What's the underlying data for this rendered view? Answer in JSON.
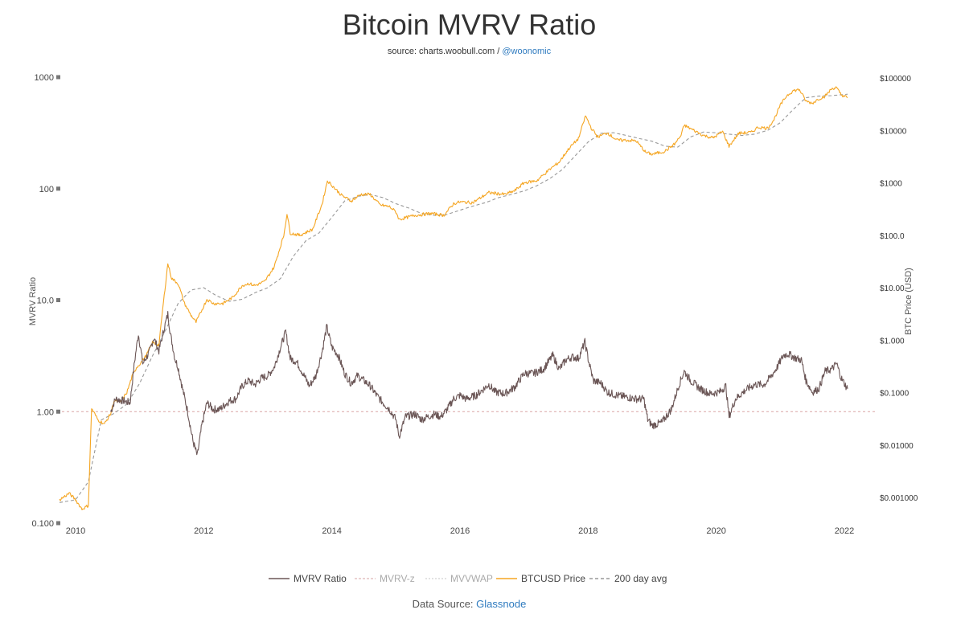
{
  "header": {
    "title": "Bitcoin MVRV Ratio",
    "source_prefix": "source: charts.woobull.com /",
    "source_handle": "@woonomic"
  },
  "footer": {
    "prefix": "Data Source:",
    "link": "Glassnode"
  },
  "colors": {
    "mvrv": "#6b5656",
    "price": "#f5a623",
    "avg": "#999999",
    "reference": "#d9a6a6",
    "mvrvz": "#e3c2c2",
    "mvvwap": "#d9d9d9"
  },
  "chart_data": {
    "type": "line",
    "title": "Bitcoin MVRV Ratio",
    "x_ticks": [
      "2010",
      "2012",
      "2014",
      "2016",
      "2018",
      "2020",
      "2022"
    ],
    "x_range": [
      2009.75,
      2022.4
    ],
    "left_axis": {
      "label": "MVRV Ratio",
      "scale": "log",
      "range": [
        0.1,
        1000
      ],
      "ticks": [
        {
          "value": 1000,
          "label": "1000"
        },
        {
          "value": 100,
          "label": "100"
        },
        {
          "value": 10,
          "label": "10.0"
        },
        {
          "value": 1,
          "label": "1.00"
        },
        {
          "value": 0.1,
          "label": "0.100"
        }
      ]
    },
    "right_axis": {
      "label": "BTC Price (USD)",
      "scale": "log",
      "range": [
        0.0004,
        200000
      ],
      "ticks": [
        {
          "value": 100000,
          "label": "$100000"
        },
        {
          "value": 10000,
          "label": "$10000"
        },
        {
          "value": 1000,
          "label": "$1000"
        },
        {
          "value": 100,
          "label": "$100.0"
        },
        {
          "value": 10,
          "label": "$10.00"
        },
        {
          "value": 1,
          "label": "$1.000"
        },
        {
          "value": 0.1,
          "label": "$0.1000"
        },
        {
          "value": 0.01,
          "label": "$0.01000"
        },
        {
          "value": 0.001,
          "label": "$0.001000"
        }
      ]
    },
    "reference_line": {
      "value": 1.0,
      "axis": "left"
    },
    "legend": [
      "MVRV Ratio",
      "MVRV-z",
      "MVVWAP",
      "BTCUSD Price",
      "200 day avg"
    ],
    "series": [
      {
        "name": "MVRV Ratio",
        "axis": "left",
        "points": [
          [
            2010.55,
            1.0
          ],
          [
            2010.62,
            1.3
          ],
          [
            2010.75,
            1.25
          ],
          [
            2010.85,
            1.2
          ],
          [
            2010.92,
            2.8
          ],
          [
            2010.98,
            5.0
          ],
          [
            2011.05,
            2.7
          ],
          [
            2011.15,
            3.4
          ],
          [
            2011.22,
            4.6
          ],
          [
            2011.3,
            3.5
          ],
          [
            2011.38,
            5.5
          ],
          [
            2011.44,
            7.5
          ],
          [
            2011.48,
            5.0
          ],
          [
            2011.55,
            3.0
          ],
          [
            2011.6,
            2.5
          ],
          [
            2011.67,
            1.6
          ],
          [
            2011.75,
            1.0
          ],
          [
            2011.83,
            0.55
          ],
          [
            2011.9,
            0.4
          ],
          [
            2011.97,
            0.75
          ],
          [
            2012.05,
            1.2
          ],
          [
            2012.15,
            1.05
          ],
          [
            2012.25,
            1.05
          ],
          [
            2012.4,
            1.25
          ],
          [
            2012.5,
            1.3
          ],
          [
            2012.6,
            1.7
          ],
          [
            2012.7,
            1.9
          ],
          [
            2012.8,
            1.75
          ],
          [
            2012.9,
            2.0
          ],
          [
            2013.0,
            2.1
          ],
          [
            2013.1,
            2.5
          ],
          [
            2013.2,
            3.8
          ],
          [
            2013.28,
            5.2
          ],
          [
            2013.35,
            3.0
          ],
          [
            2013.45,
            2.8
          ],
          [
            2013.55,
            2.2
          ],
          [
            2013.65,
            1.7
          ],
          [
            2013.75,
            2.1
          ],
          [
            2013.85,
            3.5
          ],
          [
            2013.92,
            5.8
          ],
          [
            2014.0,
            3.8
          ],
          [
            2014.1,
            3.2
          ],
          [
            2014.2,
            2.2
          ],
          [
            2014.3,
            1.8
          ],
          [
            2014.4,
            2.1
          ],
          [
            2014.5,
            1.9
          ],
          [
            2014.6,
            1.7
          ],
          [
            2014.7,
            1.4
          ],
          [
            2014.8,
            1.2
          ],
          [
            2014.9,
            1.05
          ],
          [
            2015.0,
            0.85
          ],
          [
            2015.05,
            0.6
          ],
          [
            2015.15,
            0.9
          ],
          [
            2015.3,
            0.95
          ],
          [
            2015.4,
            0.85
          ],
          [
            2015.5,
            0.9
          ],
          [
            2015.6,
            0.95
          ],
          [
            2015.7,
            0.9
          ],
          [
            2015.8,
            1.05
          ],
          [
            2015.9,
            1.3
          ],
          [
            2016.0,
            1.4
          ],
          [
            2016.1,
            1.3
          ],
          [
            2016.25,
            1.4
          ],
          [
            2016.45,
            1.75
          ],
          [
            2016.55,
            1.5
          ],
          [
            2016.7,
            1.45
          ],
          [
            2016.85,
            1.65
          ],
          [
            2017.0,
            2.2
          ],
          [
            2017.15,
            2.2
          ],
          [
            2017.3,
            2.4
          ],
          [
            2017.45,
            3.2
          ],
          [
            2017.55,
            2.4
          ],
          [
            2017.65,
            2.9
          ],
          [
            2017.75,
            3.1
          ],
          [
            2017.85,
            3.0
          ],
          [
            2017.95,
            4.2
          ],
          [
            2018.0,
            3.0
          ],
          [
            2018.08,
            1.9
          ],
          [
            2018.2,
            1.8
          ],
          [
            2018.3,
            1.5
          ],
          [
            2018.45,
            1.4
          ],
          [
            2018.6,
            1.35
          ],
          [
            2018.75,
            1.3
          ],
          [
            2018.87,
            1.3
          ],
          [
            2018.93,
            0.85
          ],
          [
            2019.0,
            0.75
          ],
          [
            2019.15,
            0.8
          ],
          [
            2019.3,
            1.05
          ],
          [
            2019.42,
            1.75
          ],
          [
            2019.5,
            2.3
          ],
          [
            2019.6,
            1.9
          ],
          [
            2019.75,
            1.6
          ],
          [
            2019.9,
            1.45
          ],
          [
            2020.05,
            1.5
          ],
          [
            2020.15,
            1.7
          ],
          [
            2020.2,
            0.9
          ],
          [
            2020.3,
            1.3
          ],
          [
            2020.45,
            1.55
          ],
          [
            2020.6,
            1.75
          ],
          [
            2020.75,
            1.75
          ],
          [
            2020.85,
            2.05
          ],
          [
            2020.95,
            2.5
          ],
          [
            2021.05,
            3.2
          ],
          [
            2021.12,
            3.3
          ],
          [
            2021.25,
            3.0
          ],
          [
            2021.33,
            2.9
          ],
          [
            2021.4,
            1.9
          ],
          [
            2021.5,
            1.5
          ],
          [
            2021.6,
            1.6
          ],
          [
            2021.7,
            2.3
          ],
          [
            2021.8,
            2.4
          ],
          [
            2021.88,
            2.7
          ],
          [
            2021.95,
            2.0
          ],
          [
            2022.05,
            1.6
          ]
        ]
      },
      {
        "name": "BTCUSD Price",
        "axis": "right",
        "points": [
          [
            2009.75,
            0.0009
          ],
          [
            2009.9,
            0.0012
          ],
          [
            2010.0,
            0.0009
          ],
          [
            2010.1,
            0.0006
          ],
          [
            2010.2,
            0.0007
          ],
          [
            2010.25,
            0.05
          ],
          [
            2010.35,
            0.03
          ],
          [
            2010.45,
            0.025
          ],
          [
            2010.55,
            0.04
          ],
          [
            2010.6,
            0.07
          ],
          [
            2010.7,
            0.065
          ],
          [
            2010.8,
            0.1
          ],
          [
            2010.88,
            0.2
          ],
          [
            2010.95,
            0.3
          ],
          [
            2011.0,
            0.35
          ],
          [
            2011.1,
            0.5
          ],
          [
            2011.2,
            0.9
          ],
          [
            2011.3,
            0.8
          ],
          [
            2011.35,
            3.0
          ],
          [
            2011.44,
            29
          ],
          [
            2011.5,
            15
          ],
          [
            2011.6,
            12
          ],
          [
            2011.7,
            5
          ],
          [
            2011.8,
            3
          ],
          [
            2011.88,
            2.2
          ],
          [
            2011.95,
            3.3
          ],
          [
            2012.05,
            6
          ],
          [
            2012.15,
            5
          ],
          [
            2012.3,
            5
          ],
          [
            2012.45,
            6.5
          ],
          [
            2012.6,
            11
          ],
          [
            2012.7,
            12
          ],
          [
            2012.8,
            11
          ],
          [
            2012.95,
            13
          ],
          [
            2013.1,
            25
          ],
          [
            2013.25,
            100
          ],
          [
            2013.3,
            260
          ],
          [
            2013.35,
            110
          ],
          [
            2013.5,
            100
          ],
          [
            2013.7,
            130
          ],
          [
            2013.85,
            400
          ],
          [
            2013.93,
            1100
          ],
          [
            2014.0,
            900
          ],
          [
            2014.15,
            580
          ],
          [
            2014.3,
            450
          ],
          [
            2014.45,
            600
          ],
          [
            2014.6,
            600
          ],
          [
            2014.75,
            380
          ],
          [
            2014.9,
            350
          ],
          [
            2015.0,
            280
          ],
          [
            2015.05,
            200
          ],
          [
            2015.3,
            240
          ],
          [
            2015.55,
            260
          ],
          [
            2015.75,
            240
          ],
          [
            2015.9,
            400
          ],
          [
            2016.0,
            430
          ],
          [
            2016.2,
            420
          ],
          [
            2016.45,
            650
          ],
          [
            2016.7,
            600
          ],
          [
            2016.85,
            700
          ],
          [
            2017.0,
            1000
          ],
          [
            2017.2,
            1100
          ],
          [
            2017.4,
            1800
          ],
          [
            2017.55,
            2500
          ],
          [
            2017.7,
            4500
          ],
          [
            2017.85,
            7000
          ],
          [
            2017.96,
            19000
          ],
          [
            2018.05,
            11000
          ],
          [
            2018.15,
            7500
          ],
          [
            2018.3,
            9000
          ],
          [
            2018.45,
            6500
          ],
          [
            2018.6,
            6500
          ],
          [
            2018.75,
            6300
          ],
          [
            2018.9,
            3800
          ],
          [
            2019.0,
            3500
          ],
          [
            2019.2,
            4000
          ],
          [
            2019.35,
            5500
          ],
          [
            2019.45,
            8000
          ],
          [
            2019.5,
            12500
          ],
          [
            2019.65,
            10000
          ],
          [
            2019.8,
            8000
          ],
          [
            2019.95,
            7200
          ],
          [
            2020.1,
            9500
          ],
          [
            2020.2,
            5000
          ],
          [
            2020.35,
            8800
          ],
          [
            2020.55,
            9200
          ],
          [
            2020.65,
            11500
          ],
          [
            2020.8,
            11000
          ],
          [
            2020.9,
            16000
          ],
          [
            2021.0,
            30000
          ],
          [
            2021.1,
            46000
          ],
          [
            2021.2,
            57000
          ],
          [
            2021.3,
            60000
          ],
          [
            2021.4,
            36000
          ],
          [
            2021.5,
            33000
          ],
          [
            2021.6,
            40000
          ],
          [
            2021.7,
            45000
          ],
          [
            2021.8,
            62000
          ],
          [
            2021.87,
            66000
          ],
          [
            2021.95,
            48000
          ],
          [
            2022.05,
            42000
          ]
        ]
      },
      {
        "name": "200 day avg",
        "axis": "right",
        "points": [
          [
            2009.75,
            0.0008
          ],
          [
            2010.0,
            0.0009
          ],
          [
            2010.2,
            0.002
          ],
          [
            2010.4,
            0.03
          ],
          [
            2010.6,
            0.04
          ],
          [
            2010.8,
            0.06
          ],
          [
            2011.0,
            0.15
          ],
          [
            2011.2,
            0.5
          ],
          [
            2011.4,
            1.5
          ],
          [
            2011.6,
            5
          ],
          [
            2011.8,
            9
          ],
          [
            2012.0,
            10
          ],
          [
            2012.2,
            7
          ],
          [
            2012.4,
            5.5
          ],
          [
            2012.6,
            6
          ],
          [
            2012.8,
            8
          ],
          [
            2013.0,
            10
          ],
          [
            2013.2,
            15
          ],
          [
            2013.4,
            40
          ],
          [
            2013.6,
            80
          ],
          [
            2013.8,
            110
          ],
          [
            2014.0,
            220
          ],
          [
            2014.2,
            450
          ],
          [
            2014.4,
            550
          ],
          [
            2014.6,
            600
          ],
          [
            2014.8,
            520
          ],
          [
            2015.0,
            400
          ],
          [
            2015.2,
            330
          ],
          [
            2015.4,
            260
          ],
          [
            2015.6,
            240
          ],
          [
            2015.8,
            250
          ],
          [
            2016.0,
            300
          ],
          [
            2016.2,
            360
          ],
          [
            2016.4,
            420
          ],
          [
            2016.6,
            520
          ],
          [
            2016.8,
            600
          ],
          [
            2017.0,
            700
          ],
          [
            2017.2,
            880
          ],
          [
            2017.4,
            1200
          ],
          [
            2017.6,
            1800
          ],
          [
            2017.8,
            3300
          ],
          [
            2018.0,
            6000
          ],
          [
            2018.2,
            8800
          ],
          [
            2018.4,
            9000
          ],
          [
            2018.6,
            8000
          ],
          [
            2018.8,
            7000
          ],
          [
            2019.0,
            6200
          ],
          [
            2019.2,
            5000
          ],
          [
            2019.4,
            4800
          ],
          [
            2019.6,
            7500
          ],
          [
            2019.8,
            9300
          ],
          [
            2020.0,
            9000
          ],
          [
            2020.2,
            8500
          ],
          [
            2020.4,
            8000
          ],
          [
            2020.6,
            8500
          ],
          [
            2020.8,
            10000
          ],
          [
            2021.0,
            14000
          ],
          [
            2021.2,
            25000
          ],
          [
            2021.4,
            42000
          ],
          [
            2021.6,
            45000
          ],
          [
            2021.8,
            46000
          ],
          [
            2022.05,
            49000
          ]
        ]
      }
    ]
  }
}
